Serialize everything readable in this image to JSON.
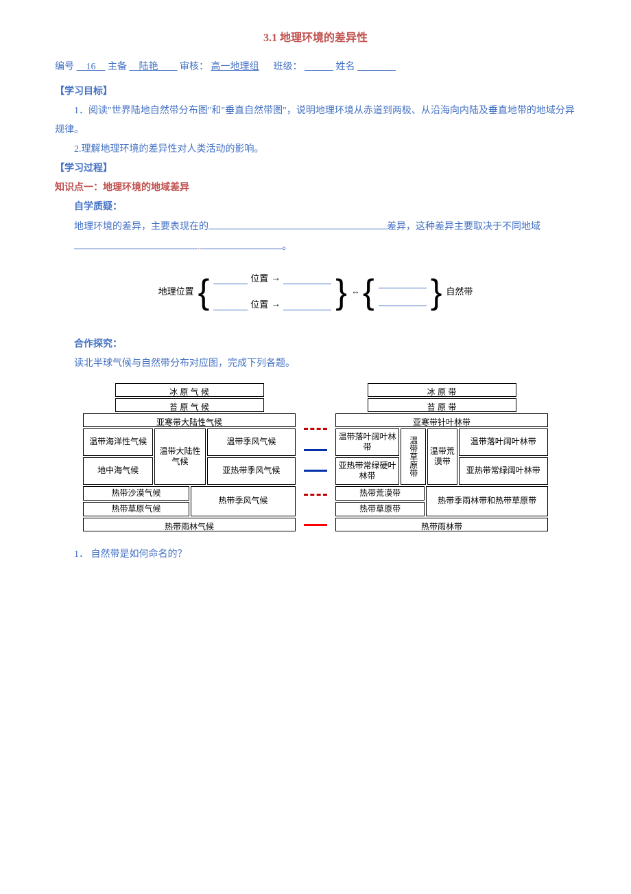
{
  "title": "3.1  地理环境的差异性",
  "meta": {
    "label_num": "编号",
    "num": "16",
    "label_author": "主备",
    "author": "陆艳",
    "label_review": "审核：",
    "review": "高一地理组",
    "label_class": "班级：",
    "label_name": "姓名"
  },
  "h_goal": "【学习目标】",
  "goal1": "1．阅读\"世界陆地自然带分布图\"和\"垂直自然带图\"，说明地理环境从赤道到两极、从沿海向内陆及垂直地带的地域分异规律。",
  "goal2": "2.理解地理环境的差异性对人类活动的影响。",
  "h_process": "【学习过程】",
  "kp1": "知识点一：地理环境的地域差异",
  "selfq": "自学质疑：",
  "fill_p1a": "地理环境的差异，主要表现在的",
  "fill_p1b": "差异，这种差异主要取决于不同地域",
  "fill_p1c": "。",
  "diagram": {
    "left_label": "地理位置",
    "pos_suffix": "位置",
    "right_label": "自然带"
  },
  "coop": "合作探究：",
  "coop_intro": "读北半球气候与自然带分布对应图，完成下列各题。",
  "chart": {
    "left": {
      "r1": "冰 原 气 候",
      "r2": "苔 原 气 候",
      "r3": "亚寒带大陆性气候",
      "r4a": "温带海洋性气候",
      "r4b": "温带大陆性气候",
      "r4c": "温带季风气候",
      "r5a": "地中海气候",
      "r5c": "亚热带季风气候",
      "r6a": "热带沙漠气候",
      "r6c": "热带季风气候",
      "r7a": "热带草原气候",
      "r8": "热带雨林气候"
    },
    "right": {
      "r1": "冰 原 带",
      "r2": "苔 原 带",
      "r3": "亚寒带针叶林带",
      "r4a": "温带落叶阔叶林带",
      "r4b": "温带草原带",
      "r4b2": "温带荒漠带",
      "r4c": "温带落叶阔叶林带",
      "r5a": "亚热带常绿硬叶林带",
      "r5c": "亚热带常绿阔叶林带",
      "r6a": "热带荒漠带",
      "r6c": "热带季雨林带和热带草原带",
      "r7a": "热带草原带",
      "r8": "热带雨林带"
    },
    "connectors": [
      {
        "top_pct": 30,
        "style": "dashed",
        "color": "#c00000"
      },
      {
        "top_pct": 44,
        "style": "solid",
        "color": "#002fa7"
      },
      {
        "top_pct": 58,
        "style": "solid",
        "color": "#002fa7"
      },
      {
        "top_pct": 74,
        "style": "dashed",
        "color": "#c00000"
      },
      {
        "top_pct": 94,
        "style": "solid",
        "color": "#ff0000"
      }
    ]
  },
  "q1": "1． 自然带是如何命名的？"
}
